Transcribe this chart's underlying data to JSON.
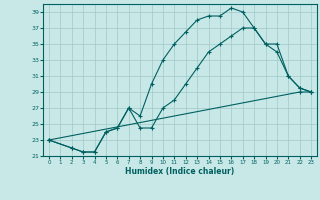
{
  "background_color": "#c8e8e8",
  "grid_color": "#a0c8c8",
  "line_color": "#006060",
  "marker": "+",
  "xlabel": "Humidex (Indice chaleur)",
  "xlim": [
    -0.5,
    23.5
  ],
  "ylim": [
    21,
    40
  ],
  "yticks": [
    21,
    23,
    25,
    27,
    29,
    31,
    33,
    35,
    37,
    39
  ],
  "xticks": [
    0,
    1,
    2,
    3,
    4,
    5,
    6,
    7,
    8,
    9,
    10,
    11,
    12,
    13,
    14,
    15,
    16,
    17,
    18,
    19,
    20,
    21,
    22,
    23
  ],
  "series": [
    {
      "x": [
        0,
        2,
        3,
        4,
        5,
        6,
        7,
        8,
        9,
        10,
        11,
        12,
        13,
        14,
        15,
        16,
        17,
        18,
        19,
        20,
        21,
        22,
        23
      ],
      "y": [
        23,
        22,
        21.5,
        21.5,
        24,
        24.5,
        27,
        26,
        30,
        33,
        35,
        36.5,
        38,
        38.5,
        38.5,
        39.5,
        39,
        37,
        35,
        34,
        31,
        29.5,
        29
      ]
    },
    {
      "x": [
        0,
        2,
        3,
        4,
        5,
        6,
        7,
        8,
        9,
        10,
        11,
        12,
        13,
        14,
        15,
        16,
        17,
        18,
        19,
        20,
        21,
        22,
        23
      ],
      "y": [
        23,
        22,
        21.5,
        21.5,
        24,
        24.5,
        27,
        24.5,
        24.5,
        27,
        28,
        30,
        32,
        34,
        35,
        36,
        37,
        37,
        35,
        35,
        31,
        29.5,
        29
      ]
    },
    {
      "x": [
        0,
        22,
        23
      ],
      "y": [
        23,
        29,
        29
      ]
    }
  ]
}
